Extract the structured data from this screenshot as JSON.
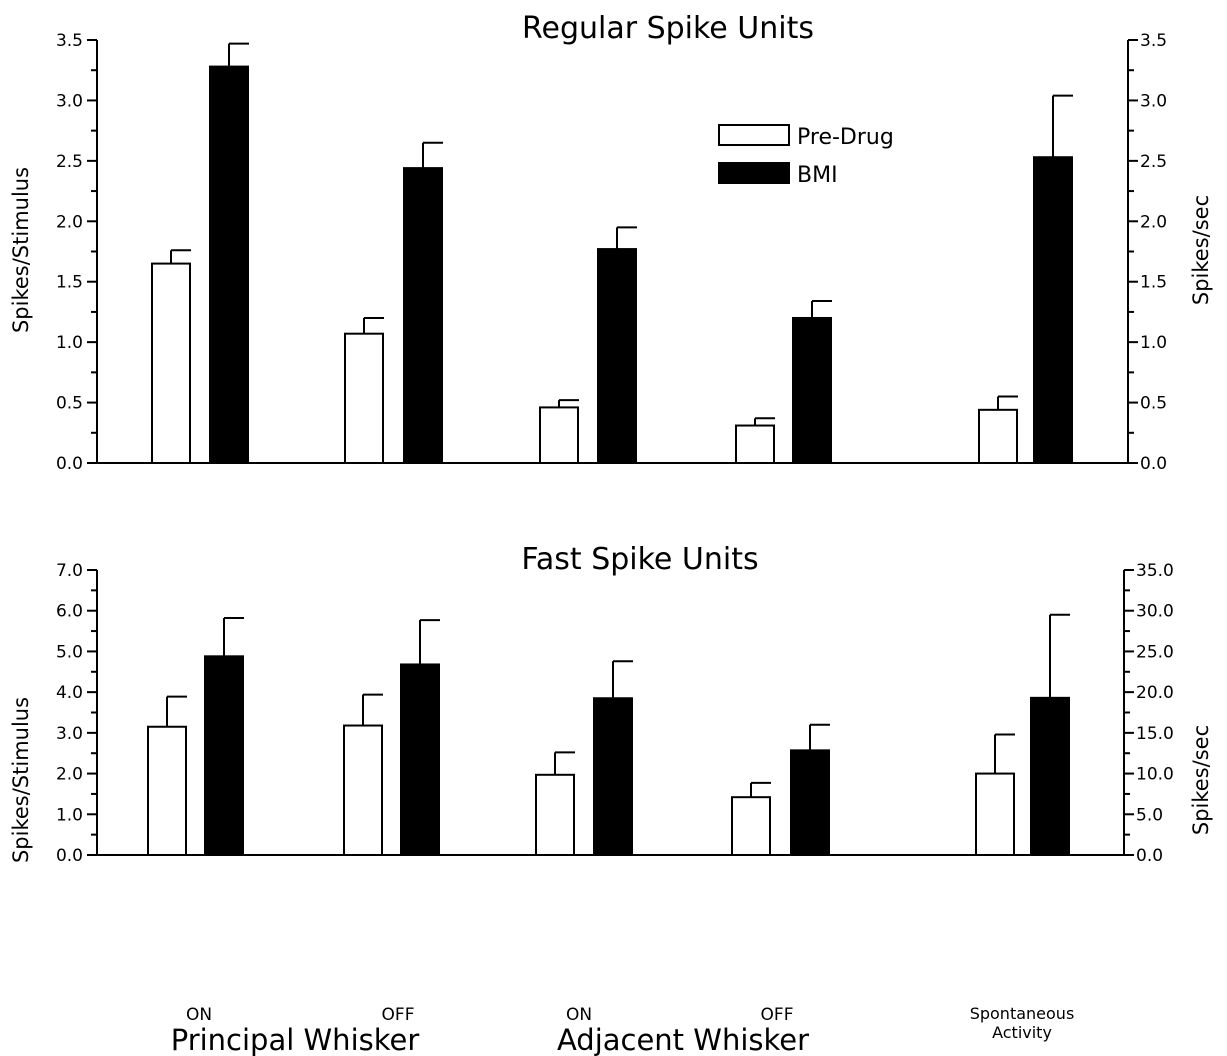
{
  "chart_data": [
    {
      "type": "bar",
      "title": "Regular Spike Units",
      "left_axis": {
        "label": "Spikes/Stimulus",
        "range": [
          0,
          3.5
        ],
        "ticks": [
          "0.0",
          "0.5",
          "1.0",
          "1.5",
          "2.0",
          "2.5",
          "3.0",
          "3.5"
        ]
      },
      "right_axis": {
        "label": "Spikes/sec",
        "range": [
          0,
          3.5
        ],
        "ticks": [
          "0.0",
          "0.5",
          "1.0",
          "1.5",
          "2.0",
          "2.5",
          "3.0",
          "3.5"
        ]
      },
      "legend": {
        "placement": "top-center",
        "entries": [
          "Pre-Drug",
          "BMI"
        ]
      },
      "categories": [
        "ON",
        "OFF",
        "ON",
        "OFF",
        "Spontaneous Activity"
      ],
      "series": [
        {
          "name": "Pre-Drug",
          "color": "#ffffff",
          "values": [
            1.65,
            1.07,
            0.46,
            0.31,
            0.44
          ],
          "errors": [
            0.11,
            0.13,
            0.06,
            0.06,
            0.11
          ]
        },
        {
          "name": "BMI",
          "color": "#000000",
          "values": [
            3.28,
            2.44,
            1.77,
            1.2,
            2.53
          ],
          "errors": [
            0.19,
            0.21,
            0.18,
            0.14,
            0.51
          ]
        }
      ],
      "right_axis_categories": [
        "Spontaneous Activity"
      ]
    },
    {
      "type": "bar",
      "title": "Fast Spike Units",
      "left_axis": {
        "label": "Spikes/Stimulus",
        "range": [
          0,
          7.0
        ],
        "ticks": [
          "0.0",
          "1.0",
          "2.0",
          "3.0",
          "4.0",
          "5.0",
          "6.0",
          "7.0"
        ]
      },
      "right_axis": {
        "label": "Spikes/sec",
        "range": [
          0,
          35.0
        ],
        "ticks": [
          "0.0",
          "5.0",
          "10.0",
          "15.0",
          "20.0",
          "25.0",
          "30.0",
          "35.0"
        ]
      },
      "categories": [
        "ON",
        "OFF",
        "ON",
        "OFF",
        "Spontaneous Activity"
      ],
      "group_labels": [
        "Principal Whisker",
        "Adjacent Whisker"
      ],
      "series": [
        {
          "name": "Pre-Drug",
          "color": "#ffffff",
          "values": [
            3.15,
            3.18,
            1.97,
            1.42,
            10.0
          ],
          "errors": [
            0.74,
            0.76,
            0.55,
            0.35,
            4.8
          ]
        },
        {
          "name": "BMI",
          "color": "#000000",
          "values": [
            4.88,
            4.68,
            3.85,
            2.57,
            19.3
          ],
          "errors": [
            0.94,
            1.09,
            0.91,
            0.63,
            10.2
          ]
        }
      ],
      "right_axis_categories": [
        "Spontaneous Activity"
      ]
    }
  ],
  "labels": {
    "cat_on": "ON",
    "cat_off": "OFF",
    "spont_1": "Spontaneous",
    "spont_2": "Activity",
    "group_principal": "Principal Whisker",
    "group_adjacent": "Adjacent Whisker"
  }
}
